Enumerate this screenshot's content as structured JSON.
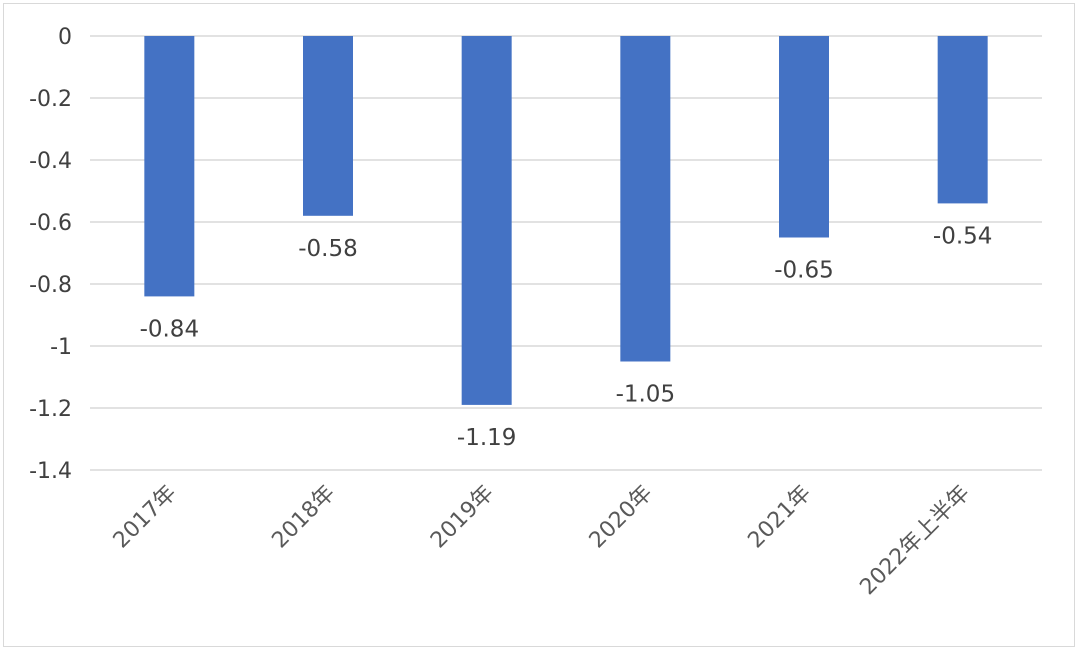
{
  "chart_data": {
    "type": "bar",
    "title": "",
    "xlabel": "",
    "ylabel": "",
    "categories": [
      "2017年",
      "2018年",
      "2019年",
      "2020年",
      "2021年",
      "2022年上半年"
    ],
    "values": [
      -0.84,
      -0.58,
      -1.19,
      -1.05,
      -0.65,
      -0.54
    ],
    "data_labels": [
      "-0.84",
      "-0.58",
      "-1.19",
      "-1.05",
      "-0.65",
      "-0.54"
    ],
    "ylim": [
      -1.4,
      0
    ],
    "yticks": [
      0,
      -0.2,
      -0.4,
      -0.6,
      -0.8,
      -1,
      -1.2,
      -1.4
    ],
    "ytick_labels": [
      "0",
      "-0.2",
      "-0.4",
      "-0.6",
      "-0.8",
      "-1",
      "-1.2",
      "-1.4"
    ],
    "grid": true,
    "legend": "none",
    "bar_color": "#4472C4"
  }
}
